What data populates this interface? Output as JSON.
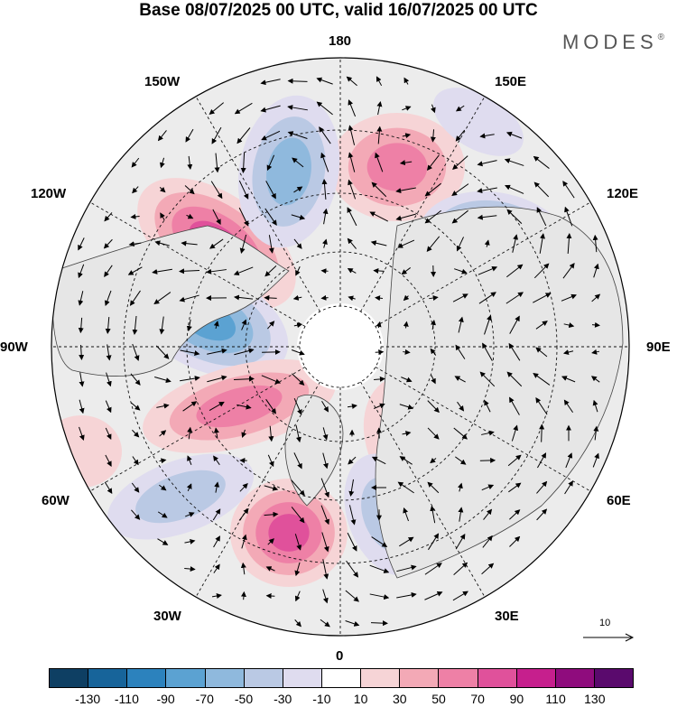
{
  "title": "Base 08/07/2025 00 UTC, valid 16/07/2025 00 UTC",
  "brand": {
    "text": "MODES",
    "mark": "®"
  },
  "map": {
    "projection": "north-polar-stereographic",
    "longitude_labels": {
      "top": "180",
      "top_right": "150E",
      "upper_right": "120E",
      "right": "90E",
      "lower_right": "60E",
      "bottom_right": "30E",
      "bottom": "0",
      "bottom_left": "30W",
      "lower_left": "60W",
      "left": "90W",
      "upper_left": "120W",
      "top_left": "150W"
    },
    "features": [
      "coastlines",
      "graticule-dashed",
      "wind-vectors",
      "shaded-anomaly-field"
    ]
  },
  "reference_vector": {
    "label": "10",
    "icon": "arrow-right-icon"
  },
  "colorbar": {
    "colors": [
      "#0e3f63",
      "#17649a",
      "#2c82bd",
      "#5ba2d2",
      "#8fb9dd",
      "#bac9e4",
      "#dfdcef",
      "#ffffff",
      "#f6d4d6",
      "#f3a9b6",
      "#ee80a6",
      "#e0519b",
      "#c61f8d",
      "#8f0c7d",
      "#5a0a6d"
    ],
    "tick_labels": [
      "-130",
      "-110",
      "-90",
      "-70",
      "-50",
      "-30",
      "-10",
      "10",
      "30",
      "50",
      "70",
      "90",
      "110",
      "130"
    ]
  }
}
